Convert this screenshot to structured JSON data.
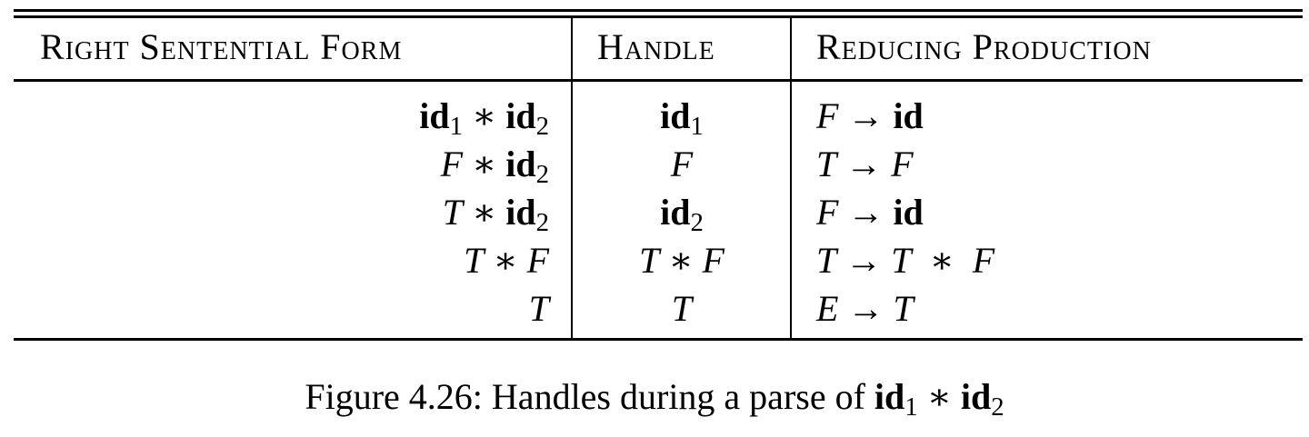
{
  "table": {
    "headers": [
      "Right Sentential Form",
      "Handle",
      "Reducing Production"
    ],
    "rows": [
      {
        "form": [
          {
            "t": "id",
            "s": "bold"
          },
          {
            "t": "1",
            "s": "sub"
          },
          {
            "t": " ∗ ",
            "s": "plain"
          },
          {
            "t": "id",
            "s": "bold"
          },
          {
            "t": "2",
            "s": "sub"
          }
        ],
        "handle": [
          {
            "t": "id",
            "s": "bold"
          },
          {
            "t": "1",
            "s": "sub"
          }
        ],
        "production": [
          {
            "t": "F",
            "s": "italic"
          },
          {
            "t": " → ",
            "s": "plain"
          },
          {
            "t": "id",
            "s": "bold"
          }
        ]
      },
      {
        "form": [
          {
            "t": "F",
            "s": "italic"
          },
          {
            "t": " ∗ ",
            "s": "plain"
          },
          {
            "t": "id",
            "s": "bold"
          },
          {
            "t": "2",
            "s": "sub"
          }
        ],
        "handle": [
          {
            "t": "F",
            "s": "italic"
          }
        ],
        "production": [
          {
            "t": "T",
            "s": "italic"
          },
          {
            "t": " → ",
            "s": "plain"
          },
          {
            "t": "F",
            "s": "italic"
          }
        ]
      },
      {
        "form": [
          {
            "t": "T",
            "s": "italic"
          },
          {
            "t": " ∗ ",
            "s": "plain"
          },
          {
            "t": "id",
            "s": "bold"
          },
          {
            "t": "2",
            "s": "sub"
          }
        ],
        "handle": [
          {
            "t": "id",
            "s": "bold"
          },
          {
            "t": "2",
            "s": "sub"
          }
        ],
        "production": [
          {
            "t": "F",
            "s": "italic"
          },
          {
            "t": " → ",
            "s": "plain"
          },
          {
            "t": "id",
            "s": "bold"
          }
        ]
      },
      {
        "form": [
          {
            "t": "T",
            "s": "italic"
          },
          {
            "t": " ∗ ",
            "s": "plain"
          },
          {
            "t": "F",
            "s": "italic"
          }
        ],
        "handle": [
          {
            "t": "T",
            "s": "italic"
          },
          {
            "t": " ∗ ",
            "s": "plain"
          },
          {
            "t": "F",
            "s": "italic"
          }
        ],
        "production": [
          {
            "t": "T",
            "s": "italic"
          },
          {
            "t": " → ",
            "s": "plain"
          },
          {
            "t": "T",
            "s": "italic"
          },
          {
            "t": "  ∗  ",
            "s": "plain"
          },
          {
            "t": "F",
            "s": "italic"
          }
        ]
      },
      {
        "form": [
          {
            "t": "T",
            "s": "italic"
          }
        ],
        "handle": [
          {
            "t": "T",
            "s": "italic"
          }
        ],
        "production": [
          {
            "t": "E",
            "s": "italic"
          },
          {
            "t": " → ",
            "s": "plain"
          },
          {
            "t": "T",
            "s": "italic"
          }
        ]
      }
    ]
  },
  "caption": [
    {
      "t": "Figure 4.26: Handles during a parse of ",
      "s": "plain"
    },
    {
      "t": "id",
      "s": "bold"
    },
    {
      "t": "1",
      "s": "sub"
    },
    {
      "t": " ∗ ",
      "s": "plain"
    },
    {
      "t": "id",
      "s": "bold"
    },
    {
      "t": "2",
      "s": "sub"
    }
  ]
}
